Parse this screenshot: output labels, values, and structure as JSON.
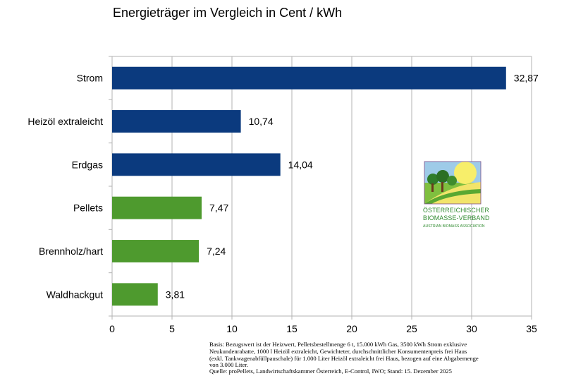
{
  "chart_data": {
    "type": "bar",
    "orientation": "horizontal",
    "title": "Energieträger im Vergleich in Cent / kWh",
    "categories": [
      "Strom",
      "Heizöl extraleicht",
      "Erdgas",
      "Pellets",
      "Brennholz/hart",
      "Waldhackgut"
    ],
    "values": [
      32.87,
      10.74,
      14.04,
      7.47,
      7.24,
      3.81
    ],
    "value_labels": [
      "32,87",
      "10,74",
      "14,04",
      "7,47",
      "7,24",
      "3,81"
    ],
    "bar_colors": [
      "#0b3a7e",
      "#0b3a7e",
      "#0b3a7e",
      "#4e9a2e",
      "#4e9a2e",
      "#4e9a2e"
    ],
    "xlim": [
      0,
      35
    ],
    "xticks": [
      0,
      5,
      10,
      15,
      20,
      25,
      30,
      35
    ],
    "grid": "vertical",
    "legend": "none"
  },
  "footnote": [
    "Basis: Bezugswert ist der Heizwert, Pelletsbestellmenge 6 t, 15.000 kWh Gas, 3500 kWh Strom exklusive",
    "Neukundenrabatte, 1000 l Heizöl extraleicht, Gewichteter, durchschnittlicher Konsumentenpreis frei Haus",
    "(exkl. Tankwagenabfüllpauschale) für 1.000 Liter Heizöl extraleicht frei Haus, bezogen auf eine Abgabemenge",
    "von 3.000 Liter.",
    "Quelle: proPellets, Landwirtschaftskammer Österreich, E-Control, IWO; Stand: 15. Dezember 2025"
  ],
  "logo": {
    "line1": "ÖSTERREICHISCHER",
    "line2": "BIOMASSE-VERBAND",
    "line3": "AUSTRIAN BIOMASS ASSOCIATION"
  }
}
